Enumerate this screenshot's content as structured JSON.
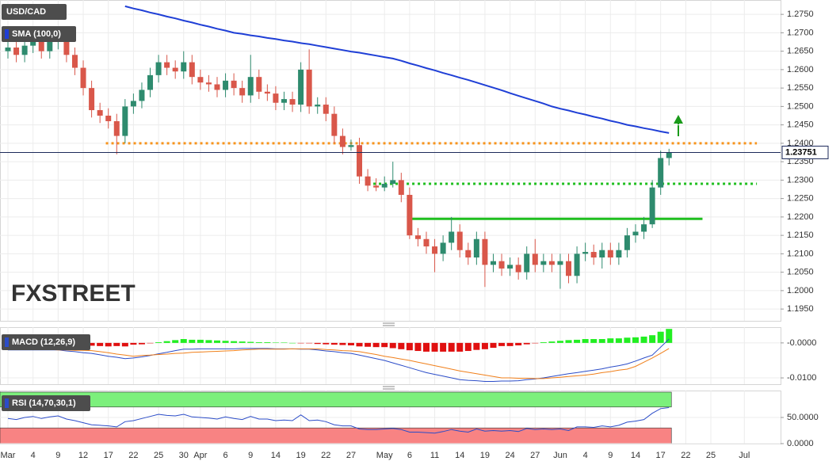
{
  "chart_data": [
    {
      "type": "candlestick",
      "title": "USD/CAD",
      "watermark": "FXSTREET",
      "categories": [
        "Mar",
        null,
        null,
        "4",
        null,
        null,
        "9",
        null,
        null,
        "12",
        null,
        null,
        "17",
        null,
        null,
        "22",
        null,
        null,
        "25",
        null,
        null,
        "30",
        null,
        "Apr",
        null,
        null,
        "6",
        null,
        null,
        "9",
        null,
        null,
        "14",
        null,
        null,
        "19",
        null,
        null,
        "22",
        null,
        null,
        "27",
        null,
        null,
        null,
        "May",
        null,
        null,
        "6",
        null,
        null,
        "11",
        null,
        null,
        "14",
        null,
        null,
        "19",
        null,
        null,
        "24",
        null,
        null,
        "27",
        null,
        null,
        "Jun",
        null,
        null,
        "4",
        null,
        null,
        "9",
        null,
        null,
        "14",
        null,
        null,
        "17",
        null,
        null,
        "22",
        null,
        null,
        "25",
        null,
        null,
        null,
        "Jul",
        null
      ],
      "open": [
        1.265,
        1.266,
        1.264,
        1.2665,
        1.268,
        1.265,
        1.2675,
        1.269,
        1.264,
        1.2605,
        1.255,
        1.249,
        1.2475,
        1.246,
        1.242,
        1.25,
        1.2515,
        1.2545,
        1.2585,
        1.262,
        1.2605,
        1.2595,
        1.262,
        1.258,
        1.2565,
        1.256,
        1.2545,
        1.257,
        1.255,
        1.253,
        1.258,
        1.254,
        1.2535,
        1.251,
        1.252,
        1.2505,
        1.26,
        1.25,
        1.2505,
        1.248,
        1.242,
        1.239,
        1.2395,
        1.231,
        1.2285,
        1.228,
        1.229,
        1.23,
        1.226,
        1.215,
        1.214,
        1.212,
        1.21,
        1.213,
        1.216,
        1.211,
        1.209,
        1.214,
        1.207,
        1.208,
        1.206,
        1.207,
        1.205,
        1.21,
        1.207,
        1.208,
        1.207,
        1.208,
        1.204,
        1.21,
        1.2105,
        1.209,
        1.211,
        1.209,
        1.211,
        1.215,
        1.216,
        1.218,
        1.228,
        1.236,
        null,
        null,
        null,
        null,
        null,
        null,
        null,
        null,
        null,
        null
      ],
      "high": [
        1.268,
        1.268,
        1.2685,
        1.27,
        1.27,
        1.2695,
        1.271,
        1.271,
        1.266,
        1.2625,
        1.257,
        1.251,
        1.2495,
        1.248,
        1.252,
        1.2535,
        1.2565,
        1.2605,
        1.264,
        1.264,
        1.2625,
        1.265,
        1.264,
        1.26,
        1.2585,
        1.258,
        1.259,
        1.259,
        1.257,
        1.264,
        1.26,
        1.256,
        1.2555,
        1.254,
        1.254,
        1.262,
        1.2655,
        1.2525,
        1.2525,
        1.25,
        1.244,
        1.241,
        1.2415,
        1.233,
        1.2305,
        1.231,
        1.235,
        1.232,
        1.228,
        1.217,
        1.216,
        1.214,
        1.215,
        1.22,
        1.218,
        1.213,
        1.216,
        1.216,
        1.21,
        1.21,
        1.209,
        1.209,
        1.212,
        1.214,
        1.21,
        1.21,
        1.21,
        1.21,
        1.212,
        1.213,
        1.2125,
        1.213,
        1.213,
        1.213,
        1.217,
        1.218,
        1.22,
        1.23,
        1.238,
        1.2385,
        null,
        null,
        null,
        null,
        null,
        null,
        null,
        null,
        null,
        null
      ],
      "low": [
        1.263,
        1.262,
        1.262,
        1.2645,
        1.263,
        1.263,
        1.2655,
        1.262,
        1.2585,
        1.253,
        1.247,
        1.2455,
        1.244,
        1.237,
        1.24,
        1.248,
        1.2495,
        1.2525,
        1.2565,
        1.2585,
        1.2575,
        1.2575,
        1.256,
        1.2545,
        1.254,
        1.2525,
        1.2525,
        1.253,
        1.251,
        1.251,
        1.252,
        1.2515,
        1.249,
        1.249,
        1.2485,
        1.2485,
        1.248,
        1.248,
        1.246,
        1.24,
        1.237,
        1.238,
        1.229,
        1.227,
        1.227,
        1.227,
        1.228,
        1.224,
        1.214,
        1.212,
        1.21,
        1.205,
        1.208,
        1.211,
        1.209,
        1.207,
        1.207,
        1.201,
        1.205,
        1.204,
        1.204,
        1.203,
        1.203,
        1.205,
        1.205,
        1.205,
        1.2005,
        1.202,
        1.202,
        1.208,
        1.207,
        1.206,
        1.207,
        1.207,
        1.209,
        1.213,
        1.214,
        1.217,
        1.226,
        1.234,
        null,
        null,
        null,
        null,
        null,
        null,
        null,
        null,
        null,
        null
      ],
      "close": [
        1.266,
        1.264,
        1.2665,
        1.268,
        1.265,
        1.2675,
        1.269,
        1.264,
        1.2605,
        1.255,
        1.249,
        1.2475,
        1.246,
        1.242,
        1.25,
        1.2515,
        1.2545,
        1.2585,
        1.262,
        1.2605,
        1.2595,
        1.262,
        1.258,
        1.2565,
        1.256,
        1.2545,
        1.257,
        1.255,
        1.253,
        1.258,
        1.254,
        1.2535,
        1.251,
        1.252,
        1.2505,
        1.26,
        1.25,
        1.2505,
        1.248,
        1.242,
        1.239,
        1.2395,
        1.231,
        1.2285,
        1.228,
        1.229,
        1.23,
        1.226,
        1.215,
        1.214,
        1.212,
        1.21,
        1.213,
        1.216,
        1.211,
        1.209,
        1.214,
        1.207,
        1.208,
        1.206,
        1.207,
        1.205,
        1.21,
        1.207,
        1.208,
        1.207,
        1.208,
        1.204,
        1.21,
        1.2105,
        1.209,
        1.211,
        1.209,
        1.211,
        1.215,
        1.216,
        1.218,
        1.228,
        1.236,
        1.23751,
        null,
        null,
        null,
        null,
        null,
        null,
        null,
        null,
        null,
        null
      ],
      "up_color": "#2e8b6e",
      "down_color": "#d9574a",
      "series": [
        {
          "name": "SMA (100,0)",
          "color": "#1f3fd6",
          "values": [
            null,
            null,
            null,
            null,
            null,
            null,
            null,
            null,
            null,
            null,
            null,
            null,
            null,
            null,
            1.2772,
            1.2766,
            1.2761,
            1.2755,
            1.275,
            1.2744,
            1.2739,
            1.2733,
            1.2728,
            1.2722,
            1.2717,
            1.2711,
            1.2706,
            1.27,
            1.2697,
            1.2693,
            1.269,
            1.2686,
            1.2683,
            1.2679,
            1.2676,
            1.2672,
            1.2669,
            1.2665,
            1.2661,
            1.2657,
            1.2653,
            1.2649,
            1.2646,
            1.2642,
            1.2638,
            1.2634,
            1.263,
            1.2624,
            1.2617,
            1.2611,
            1.2604,
            1.2598,
            1.2591,
            1.2585,
            1.2578,
            1.2572,
            1.2565,
            1.2558,
            1.2551,
            1.2544,
            1.2536,
            1.2529,
            1.2522,
            1.2515,
            1.2508,
            1.25,
            1.2494,
            1.2489,
            1.2483,
            1.2478,
            1.2472,
            1.2467,
            1.2461,
            1.2456,
            1.245,
            1.2446,
            1.2441,
            1.2437,
            1.2432,
            1.2428,
            null,
            null,
            null,
            null,
            null,
            null,
            null,
            null,
            null,
            null
          ]
        }
      ],
      "levels": [
        {
          "value": 1.24,
          "color": "#f7941d",
          "style": "dotted"
        },
        {
          "value": 1.229,
          "color": "#1fbf1f",
          "style": "dotted"
        },
        {
          "value": 1.2195,
          "color": "#1fbf1f",
          "style": "solid"
        }
      ],
      "last_price": 1.23751,
      "ylim": [
        1.1918,
        1.2789
      ],
      "yticks": [
        {
          "value": 1.275,
          "label": "1.2750"
        },
        {
          "value": 1.27,
          "label": "1.2700"
        },
        {
          "value": 1.265,
          "label": "1.2650"
        },
        {
          "value": 1.26,
          "label": "1.2600"
        },
        {
          "value": 1.255,
          "label": "1.2550"
        },
        {
          "value": 1.25,
          "label": "1.2500"
        },
        {
          "value": 1.245,
          "label": "1.2450"
        },
        {
          "value": 1.24,
          "label": "1.2400"
        },
        {
          "value": 1.235,
          "label": "1.2350"
        },
        {
          "value": 1.23,
          "label": "1.2300"
        },
        {
          "value": 1.225,
          "label": "1.2250"
        },
        {
          "value": 1.22,
          "label": "1.2200"
        },
        {
          "value": 1.215,
          "label": "1.2150"
        },
        {
          "value": 1.21,
          "label": "1.2100"
        },
        {
          "value": 1.205,
          "label": "1.2050"
        },
        {
          "value": 1.2,
          "label": "1.2000"
        },
        {
          "value": 1.195,
          "label": "1.1950"
        }
      ],
      "grid": true
    },
    {
      "type": "macd",
      "title": "MACD (12,26,9)",
      "histogram": [
        -0.0002,
        -0.0002,
        -0.0002,
        -0.0001,
        -0.0001,
        -0.0001,
        0.0,
        -0.0003,
        -0.0004,
        -0.0007,
        -0.0008,
        -0.0009,
        -0.001,
        -0.0009,
        -0.001,
        -0.0005,
        -0.0004,
        -0.0001,
        0.0002,
        0.0005,
        0.0008,
        0.0011,
        0.0009,
        0.0009,
        0.0008,
        0.0007,
        0.0006,
        0.0005,
        0.0004,
        0.0003,
        0.0002,
        0.0002,
        0.0001,
        0.0001,
        0.0,
        -0.0001,
        -0.0001,
        -0.0003,
        -0.0004,
        -0.0005,
        -0.0006,
        -0.0007,
        -0.001,
        -0.0011,
        -0.0012,
        -0.0012,
        -0.0015,
        -0.0018,
        -0.0021,
        -0.0023,
        -0.0025,
        -0.0025,
        -0.0025,
        -0.0025,
        -0.0025,
        -0.0023,
        -0.002,
        -0.0018,
        -0.0014,
        -0.0009,
        -0.0009,
        -0.0007,
        -0.0004,
        -0.0001,
        0.0002,
        0.0004,
        0.0006,
        0.0008,
        0.0009,
        0.0011,
        0.0011,
        0.0011,
        0.0013,
        0.0013,
        0.0015,
        0.0016,
        0.0018,
        0.0022,
        0.0032,
        0.004,
        null,
        null,
        null,
        null,
        null,
        null,
        null,
        null,
        null,
        null
      ],
      "up_color": "#22ee22",
      "down_color": "#e01010",
      "series": [
        {
          "color": "#2b4cc8",
          "values": [
            -0.002,
            -0.002,
            -0.002,
            -0.002,
            -0.002,
            -0.002,
            -0.002,
            -0.0023,
            -0.0025,
            -0.0028,
            -0.003,
            -0.0034,
            -0.0038,
            -0.0041,
            -0.0045,
            -0.0043,
            -0.004,
            -0.0036,
            -0.0031,
            -0.0027,
            -0.0022,
            -0.0018,
            -0.0018,
            -0.0017,
            -0.0017,
            -0.0017,
            -0.0017,
            -0.0017,
            -0.0016,
            -0.0016,
            -0.0016,
            -0.0016,
            -0.0017,
            -0.0017,
            -0.0017,
            -0.0018,
            -0.0018,
            -0.002,
            -0.0023,
            -0.0025,
            -0.0028,
            -0.003,
            -0.0035,
            -0.004,
            -0.0045,
            -0.005,
            -0.0057,
            -0.0064,
            -0.0071,
            -0.0078,
            -0.0085,
            -0.009,
            -0.0095,
            -0.01,
            -0.0105,
            -0.0107,
            -0.0108,
            -0.011,
            -0.011,
            -0.0109,
            -0.0109,
            -0.0108,
            -0.0105,
            -0.0103,
            -0.01,
            -0.0096,
            -0.0092,
            -0.0088,
            -0.0085,
            -0.0081,
            -0.0078,
            -0.0074,
            -0.0069,
            -0.0065,
            -0.006,
            -0.0052,
            -0.0043,
            -0.0035,
            -0.0012,
            0.0011,
            null,
            null,
            null,
            null,
            null,
            null,
            null,
            null,
            null,
            null
          ]
        },
        {
          "color": "#f07f1a",
          "values": [
            -0.0018,
            -0.0018,
            -0.0018,
            -0.0019,
            -0.0019,
            -0.0019,
            -0.002,
            -0.002,
            -0.0021,
            -0.0021,
            -0.0022,
            -0.0025,
            -0.0028,
            -0.0032,
            -0.0035,
            -0.0038,
            -0.0036,
            -0.0035,
            -0.0033,
            -0.0032,
            -0.003,
            -0.0029,
            -0.0027,
            -0.0026,
            -0.0025,
            -0.0024,
            -0.0023,
            -0.0022,
            -0.002,
            -0.0019,
            -0.0018,
            -0.0018,
            -0.0018,
            -0.0018,
            -0.0017,
            -0.0017,
            -0.0017,
            -0.0017,
            -0.0019,
            -0.002,
            -0.0022,
            -0.0023,
            -0.0025,
            -0.0029,
            -0.0033,
            -0.0038,
            -0.0042,
            -0.0046,
            -0.005,
            -0.0055,
            -0.006,
            -0.0065,
            -0.007,
            -0.0075,
            -0.008,
            -0.0084,
            -0.0088,
            -0.0092,
            -0.0096,
            -0.01,
            -0.01,
            -0.0101,
            -0.0101,
            -0.0102,
            -0.0102,
            -0.01,
            -0.0098,
            -0.0096,
            -0.0094,
            -0.0092,
            -0.0089,
            -0.0085,
            -0.0082,
            -0.0078,
            -0.0075,
            -0.0067,
            -0.0055,
            -0.0043,
            -0.003,
            -0.0016,
            null,
            null,
            null,
            null,
            null,
            null,
            null,
            null,
            null,
            null
          ]
        }
      ],
      "ylim": [
        -0.0118,
        0.0045
      ],
      "yticks": [
        {
          "value": 0,
          "label": "-0.0000"
        },
        {
          "value": -0.01,
          "label": "-0.0100"
        }
      ]
    },
    {
      "type": "rsi",
      "title": "RSI (14,70,30,1)",
      "color": "#2b4cc8",
      "values": [
        48,
        46,
        50,
        52,
        48,
        51,
        53,
        47,
        44,
        40,
        36,
        35,
        34,
        32,
        42,
        44,
        48,
        52,
        56,
        54,
        53,
        56,
        51,
        50,
        49,
        47,
        51,
        48,
        46,
        52,
        47,
        47,
        44,
        45,
        44,
        55,
        44,
        45,
        42,
        36,
        34,
        34,
        28,
        27,
        27,
        28,
        29,
        27,
        22,
        22,
        21,
        20,
        23,
        27,
        24,
        22,
        28,
        24,
        25,
        24,
        25,
        23,
        29,
        27,
        28,
        27,
        28,
        25,
        32,
        32,
        31,
        34,
        32,
        35,
        41,
        43,
        46,
        58,
        67,
        69,
        null,
        null,
        null,
        null,
        null,
        null,
        null,
        null,
        null,
        null
      ],
      "overbought": 70,
      "oversold": 30,
      "ylim": [
        0,
        101.5
      ],
      "yticks": [
        {
          "value": 50,
          "label": "50.0000"
        },
        {
          "value": 0,
          "label": "0.0000"
        }
      ]
    }
  ]
}
